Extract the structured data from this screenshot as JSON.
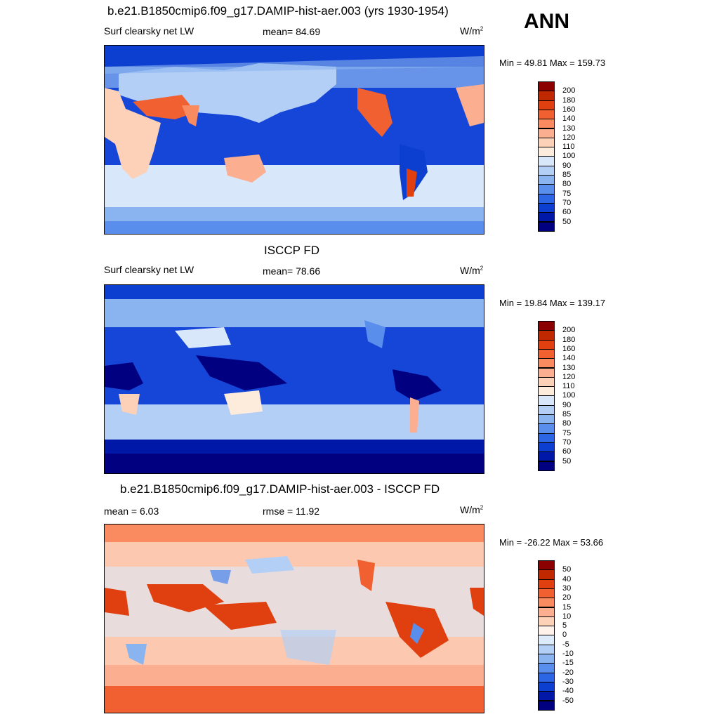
{
  "season": "ANN",
  "panels": [
    {
      "title": "b.e21.B1850cmip6.f09_g17.DAMIP-hist-aer.003 (yrs 1930-1954)",
      "left_label": "Surf clearsky net LW",
      "mid_label": "mean=  84.69",
      "units": "W/m",
      "units_sup": "2",
      "minmax": "Min =  49.81 Max = 159.73",
      "colorbar_labels": [
        "200",
        "180",
        "160",
        "140",
        "130",
        "120",
        "110",
        "100",
        "90",
        "85",
        "80",
        "75",
        "70",
        "60",
        "50"
      ],
      "colorbar_colors": [
        "#8b0000",
        "#c02800",
        "#e04010",
        "#f06030",
        "#fa8a60",
        "#fcae90",
        "#fdd0b8",
        "#fdebdc",
        "#d8e8fa",
        "#b4cff5",
        "#8ab4f0",
        "#5a8eec",
        "#2c66e4",
        "#0c3ed0",
        "#0018a8",
        "#000080"
      ],
      "palette_bg": "#1646d8"
    },
    {
      "title": "ISCCP FD",
      "left_label": "Surf clearsky net LW",
      "mid_label": "mean=  78.66",
      "units": "W/m",
      "units_sup": "2",
      "minmax": "Min =  19.84 Max = 139.17",
      "colorbar_labels": [
        "200",
        "180",
        "160",
        "140",
        "130",
        "120",
        "110",
        "100",
        "90",
        "85",
        "80",
        "75",
        "70",
        "60",
        "50"
      ],
      "colorbar_colors": [
        "#8b0000",
        "#c02800",
        "#e04010",
        "#f06030",
        "#fa8a60",
        "#fcae90",
        "#fdd0b8",
        "#fdebdc",
        "#d8e8fa",
        "#b4cff5",
        "#8ab4f0",
        "#5a8eec",
        "#2c66e4",
        "#0c3ed0",
        "#0018a8",
        "#000080"
      ],
      "palette_bg": "#1646d8"
    },
    {
      "title": "b.e21.B1850cmip6.f09_g17.DAMIP-hist-aer.003 - ISCCP FD",
      "left_label": "mean =   6.03",
      "mid_label": "rmse =  11.92",
      "units": "W/m",
      "units_sup": "2",
      "minmax": "Min = -26.22 Max =  53.66",
      "colorbar_labels": [
        "50",
        "40",
        "30",
        "20",
        "15",
        "10",
        "5",
        "0",
        "-5",
        "-10",
        "-15",
        "-20",
        "-30",
        "-40",
        "-50"
      ],
      "colorbar_colors": [
        "#8b0000",
        "#c02800",
        "#e04010",
        "#f06030",
        "#fa8a60",
        "#fcae90",
        "#fdd0b8",
        "#fef2ea",
        "#dceafa",
        "#b4cff5",
        "#8ab4f0",
        "#5a8eec",
        "#2c66e4",
        "#0c3ed0",
        "#0018a8",
        "#000080"
      ],
      "palette_bg": "#fcc8b0"
    }
  ]
}
